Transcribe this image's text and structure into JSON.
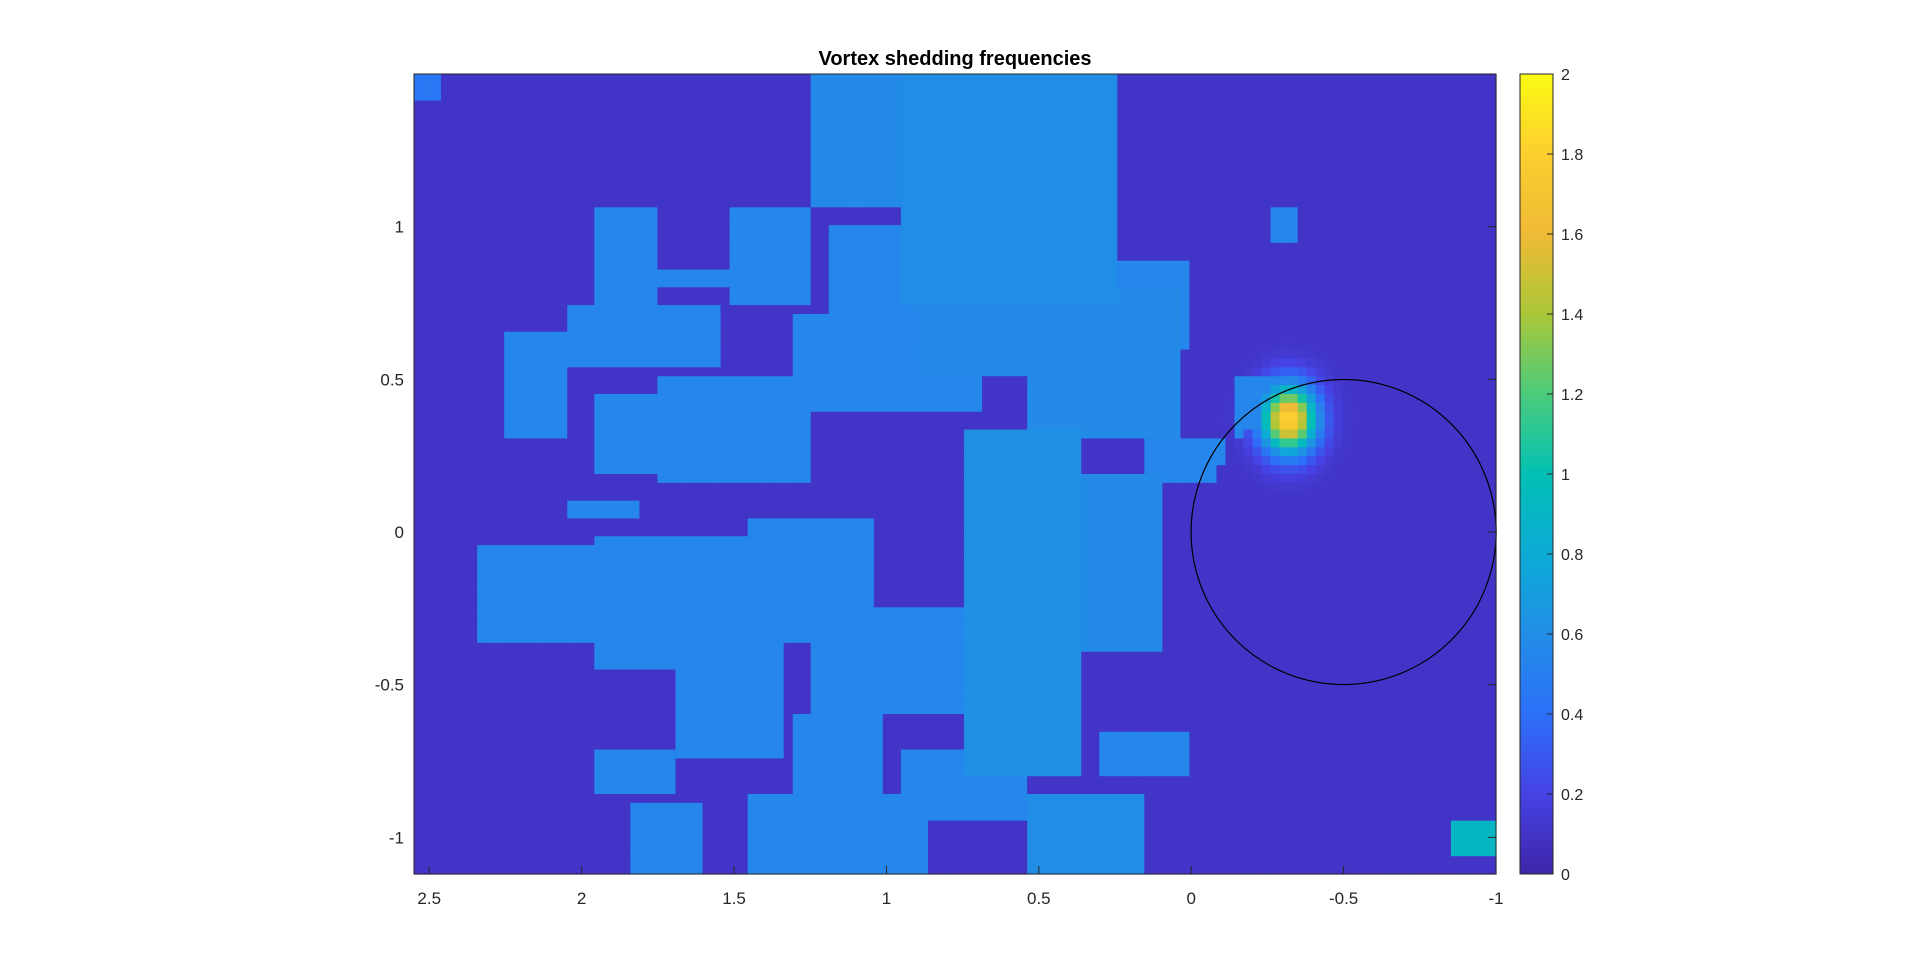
{
  "chart_data": {
    "type": "heatmap",
    "title": "Vortex shedding frequencies",
    "xlabel": "",
    "ylabel": "",
    "xlim": [
      2.55,
      -1
    ],
    "ylim": [
      -1.12,
      1.5
    ],
    "x_reversed": true,
    "x_ticks": [
      "2.5",
      "2",
      "1.5",
      "1",
      "0.5",
      "0",
      "-0.5",
      "-1"
    ],
    "y_ticks": [
      "1",
      "0.5",
      "0",
      "-0.5",
      "-1"
    ],
    "colorbar": {
      "min": 0,
      "max": 2,
      "colormap": "parula",
      "ticks": [
        "0",
        "0.2",
        "0.4",
        "0.6",
        "0.8",
        "1",
        "1.2",
        "1.4",
        "1.6",
        "1.8",
        "2"
      ]
    },
    "grid_resolution": [
      28,
      40
    ],
    "regions": [
      {
        "x": [
          1.95,
          1.75
        ],
        "y": [
          0.7,
          1.05
        ],
        "value": 0.55
      },
      {
        "x": [
          1.75,
          1.5
        ],
        "y": [
          0.8,
          0.85
        ],
        "value": 0.55
      },
      {
        "x": [
          1.5,
          1.25
        ],
        "y": [
          0.75,
          1.05
        ],
        "value": 0.55
      },
      {
        "x": [
          2.25,
          2.05
        ],
        "y": [
          0.3,
          0.65
        ],
        "value": 0.55
      },
      {
        "x": [
          2.05,
          1.55
        ],
        "y": [
          0.55,
          0.75
        ],
        "value": 0.55
      },
      {
        "x": [
          1.95,
          1.55
        ],
        "y": [
          0.2,
          0.45
        ],
        "value": 0.55
      },
      {
        "x": [
          1.75,
          1.25
        ],
        "y": [
          0.15,
          0.5
        ],
        "value": 0.55
      },
      {
        "x": [
          1.3,
          0.7
        ],
        "y": [
          0.4,
          0.7
        ],
        "value": 0.55
      },
      {
        "x": [
          1.2,
          0.8
        ],
        "y": [
          0.6,
          1.0
        ],
        "value": 0.55
      },
      {
        "x": [
          1.25,
          0.95
        ],
        "y": [
          1.05,
          1.5
        ],
        "value": 0.58
      },
      {
        "x": [
          0.95,
          0.25
        ],
        "y": [
          0.75,
          1.5
        ],
        "value": 0.6
      },
      {
        "x": [
          0.9,
          0.45
        ],
        "y": [
          0.5,
          0.8
        ],
        "value": 0.58
      },
      {
        "x": [
          0.55,
          0.05
        ],
        "y": [
          0.3,
          0.8
        ],
        "value": 0.58
      },
      {
        "x": [
          0.25,
          0.0
        ],
        "y": [
          0.6,
          0.9
        ],
        "value": 0.55
      },
      {
        "x": [
          2.35,
          1.95
        ],
        "y": [
          -0.35,
          -0.05
        ],
        "value": 0.55
      },
      {
        "x": [
          2.05,
          1.8
        ],
        "y": [
          0.05,
          0.1
        ],
        "value": 0.55
      },
      {
        "x": [
          1.95,
          1.45
        ],
        "y": [
          -0.45,
          0.0
        ],
        "value": 0.55
      },
      {
        "x": [
          1.7,
          1.35
        ],
        "y": [
          -0.75,
          -0.3
        ],
        "value": 0.55
      },
      {
        "x": [
          1.45,
          1.05
        ],
        "y": [
          -0.35,
          0.05
        ],
        "value": 0.55
      },
      {
        "x": [
          1.25,
          0.75
        ],
        "y": [
          -0.6,
          -0.25
        ],
        "value": 0.55
      },
      {
        "x": [
          0.75,
          0.35
        ],
        "y": [
          -0.8,
          0.35
        ],
        "value": 0.62
      },
      {
        "x": [
          0.35,
          0.1
        ],
        "y": [
          -0.4,
          0.2
        ],
        "value": 0.58
      },
      {
        "x": [
          0.15,
          -0.1
        ],
        "y": [
          0.15,
          0.3
        ],
        "value": 0.55
      },
      {
        "x": [
          1.95,
          1.7
        ],
        "y": [
          -0.85,
          -0.7
        ],
        "value": 0.55
      },
      {
        "x": [
          1.85,
          1.6
        ],
        "y": [
          -1.12,
          -0.9
        ],
        "value": 0.55
      },
      {
        "x": [
          1.45,
          0.85
        ],
        "y": [
          -1.12,
          -0.85
        ],
        "value": 0.55
      },
      {
        "x": [
          1.3,
          1.0
        ],
        "y": [
          -0.9,
          -0.6
        ],
        "value": 0.55
      },
      {
        "x": [
          0.95,
          0.55
        ],
        "y": [
          -0.95,
          -0.7
        ],
        "value": 0.55
      },
      {
        "x": [
          0.55,
          0.15
        ],
        "y": [
          -1.12,
          -0.85
        ],
        "value": 0.6
      },
      {
        "x": [
          0.3,
          0.0
        ],
        "y": [
          -0.8,
          -0.65
        ],
        "value": 0.55
      },
      {
        "x": [
          -0.15,
          -0.35
        ],
        "y": [
          0.3,
          0.5
        ],
        "value": 0.55
      },
      {
        "x": [
          -0.25,
          -0.35
        ],
        "y": [
          0.95,
          1.05
        ],
        "value": 0.55
      },
      {
        "x": [
          2.55,
          2.45
        ],
        "y": [
          1.42,
          1.5
        ],
        "value": 0.45
      },
      {
        "x": [
          -0.85,
          -1.0
        ],
        "y": [
          -1.05,
          -0.95
        ],
        "value": 0.9
      }
    ],
    "peaks": [
      {
        "x": -0.32,
        "y": 0.37,
        "value": 1.85
      }
    ],
    "circle": {
      "center": [
        -0.5,
        0.0
      ],
      "radius": 0.5
    }
  }
}
